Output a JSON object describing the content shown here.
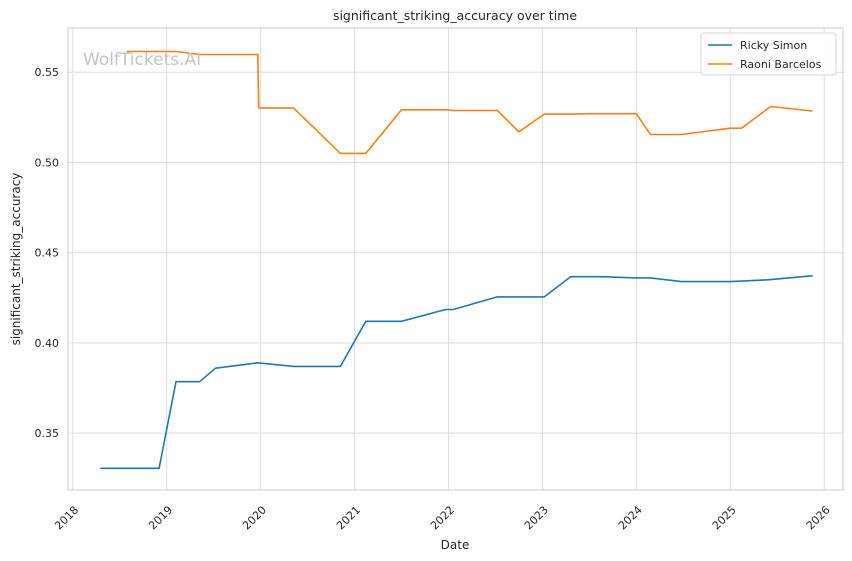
{
  "watermark": "WolfTickets.AI",
  "chart_data": {
    "type": "line",
    "title": "significant_striking_accuracy over time",
    "xlabel": "Date",
    "ylabel": "significant_striking_accuracy",
    "xlim": [
      2017.95,
      2026.2
    ],
    "ylim": [
      0.3185,
      0.5745
    ],
    "x_ticks": [
      "2018",
      "2019",
      "2020",
      "2021",
      "2022",
      "2023",
      "2024",
      "2025",
      "2026"
    ],
    "y_ticks": [
      "0.35",
      "0.40",
      "0.45",
      "0.50",
      "0.55"
    ],
    "grid": true,
    "legend_position": "top-right",
    "series": [
      {
        "name": "Ricky Simon",
        "color": "#1f77b4",
        "x": [
          2018.3,
          2018.92,
          2019.1,
          2019.35,
          2019.52,
          2019.97,
          2020.35,
          2020.85,
          2021.12,
          2021.5,
          2021.97,
          2022.05,
          2022.52,
          2023.02,
          2023.3,
          2023.62,
          2024.0,
          2024.15,
          2024.48,
          2025.0,
          2025.4,
          2025.87
        ],
        "values": [
          0.3305,
          0.3305,
          0.3785,
          0.3785,
          0.386,
          0.389,
          0.387,
          0.387,
          0.412,
          0.412,
          0.4185,
          0.4185,
          0.4255,
          0.4255,
          0.4367,
          0.4367,
          0.436,
          0.436,
          0.434,
          0.434,
          0.435,
          0.4372
        ]
      },
      {
        "name": "Raoni Barcelos",
        "color": "#ff7f0e",
        "x": [
          2018.58,
          2019.1,
          2019.35,
          2019.97,
          2019.98,
          2020.35,
          2020.85,
          2021.12,
          2021.5,
          2021.98,
          2022.05,
          2022.52,
          2022.75,
          2023.02,
          2023.35,
          2023.5,
          2024.0,
          2024.15,
          2024.48,
          2025.0,
          2025.12,
          2025.43,
          2025.87
        ],
        "values": [
          0.5615,
          0.5615,
          0.5598,
          0.5598,
          0.5302,
          0.5302,
          0.505,
          0.505,
          0.5292,
          0.5292,
          0.5288,
          0.5288,
          0.517,
          0.5268,
          0.5268,
          0.527,
          0.527,
          0.5155,
          0.5155,
          0.519,
          0.519,
          0.531,
          0.5285
        ]
      }
    ]
  }
}
